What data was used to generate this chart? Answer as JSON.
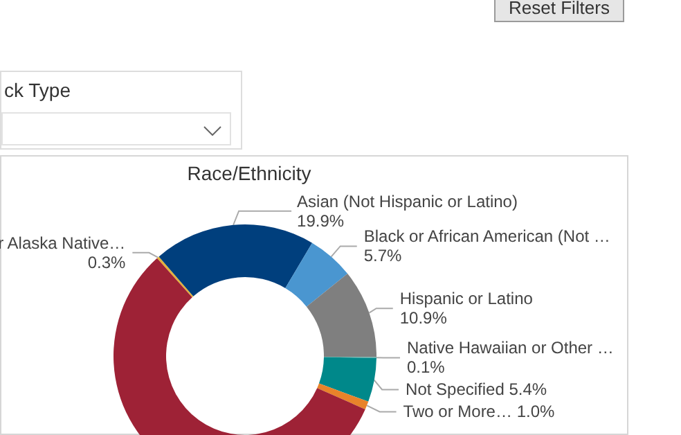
{
  "chart_data": {
    "type": "donut",
    "title": "Race/Ethnicity",
    "categories": [
      "r Alaska Native…",
      "Asian (Not Hispanic or Latino)",
      "Black or African American (Not …",
      "Hispanic or Latino",
      "Native Hawaiian or Other …",
      "Not Specified",
      "Two or More…",
      null
    ],
    "values": [
      0.3,
      19.9,
      5.7,
      10.9,
      0.1,
      5.4,
      1.0,
      56.7
    ],
    "value_labels": [
      "0.3%",
      "19.9%",
      "5.7%",
      "10.9%",
      "0.1%",
      "5.4%",
      "1.0%",
      null
    ],
    "colors": [
      "#e3b23c",
      "#003f7d",
      "#4a96d0",
      "#7f7f7f",
      "#5fa8a0",
      "#00888a",
      "#e8832a",
      "#9e2236"
    ],
    "legend": false,
    "annotations": [
      "Reset Filters",
      "ck Type"
    ]
  }
}
